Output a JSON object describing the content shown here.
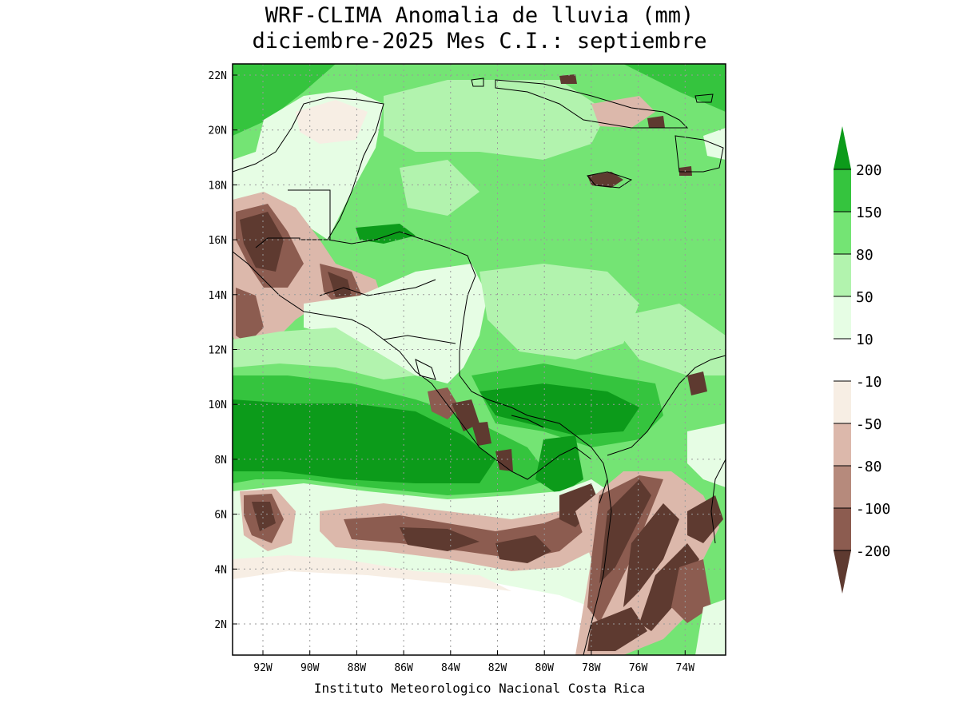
{
  "title_line1": "WRF-CLIMA Anomalia de lluvia (mm)",
  "title_line2": "diciembre-2025 Mes C.I.: septiembre",
  "credit": "Instituto Meteorologico Nacional Costa Rica",
  "lat_ticks": [
    "22N",
    "20N",
    "18N",
    "16N",
    "14N",
    "12N",
    "10N",
    "8N",
    "6N",
    "4N",
    "2N"
  ],
  "lon_ticks": [
    "92W",
    "90W",
    "88W",
    "86W",
    "84W",
    "82W",
    "80W",
    "78W",
    "76W",
    "74W"
  ],
  "colorbar": {
    "labels": [
      "200",
      "150",
      "80",
      "50",
      "10",
      "-10",
      "-50",
      "-80",
      "-100",
      "-200"
    ],
    "colors": [
      "#0c9b1a",
      "#35c43e",
      "#74e474",
      "#b2f3ae",
      "#e6fde4",
      "#ffffff",
      "#f7eee4",
      "#dcb8ab",
      "#b68a7c",
      "#8c5c50",
      "#5e3a30"
    ]
  },
  "colors": {
    "ocean_green": "#74e474",
    "deep_green": "#0c9b1a",
    "mid_green": "#35c43e",
    "light_green": "#b2f3ae",
    "pale_green": "#e6fde4",
    "brown_dark": "#5e3a30",
    "brown_mid": "#8c5c50",
    "brown_light": "#dcb8ab"
  }
}
